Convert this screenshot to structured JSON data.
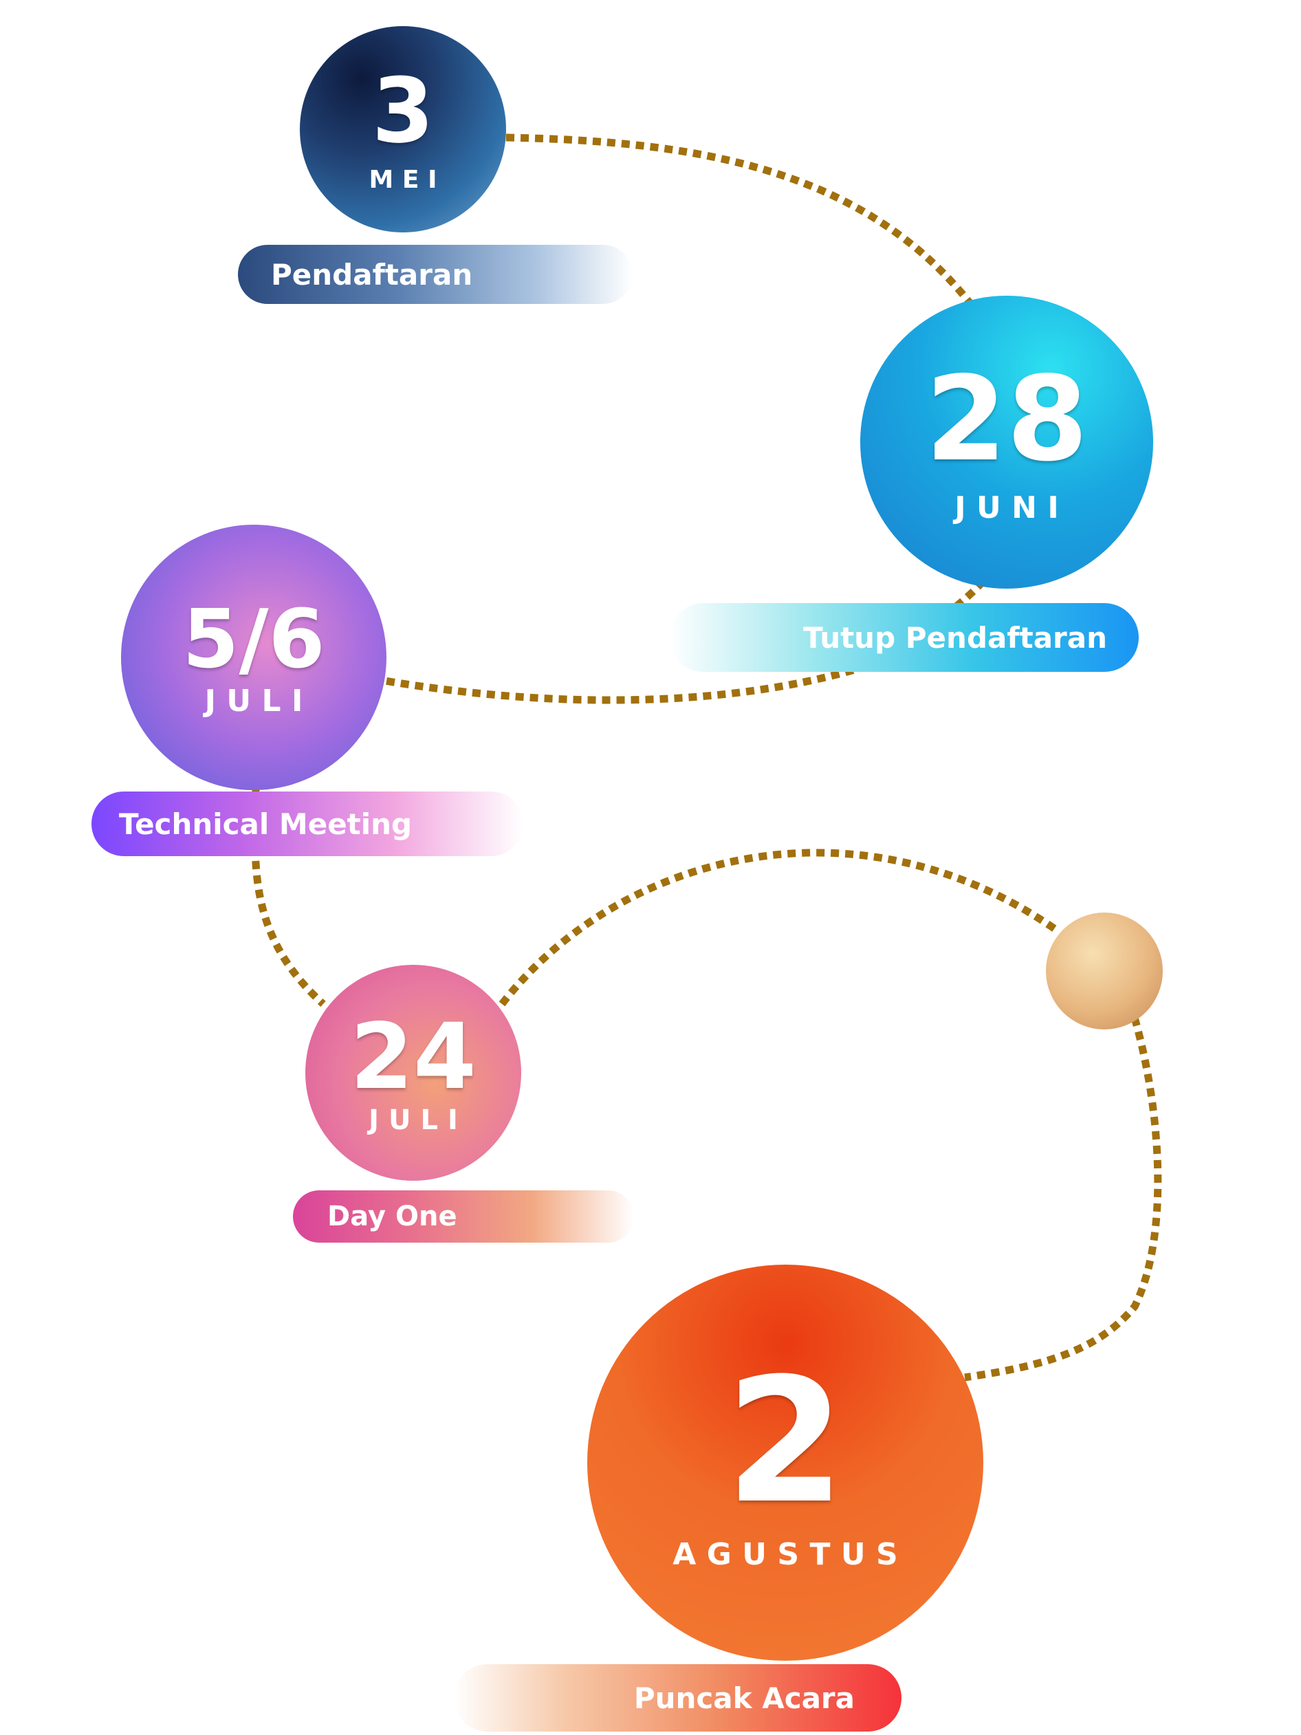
{
  "colors": {
    "path": "#a2700d"
  },
  "events": [
    {
      "day": "3",
      "month": "MEI",
      "label": "Pendaftaran",
      "color": "#1f3d6e"
    },
    {
      "day": "28",
      "month": "JUNI",
      "label": "Tutup Pendaftaran",
      "color": "#1aa7e0"
    },
    {
      "day": "5/6",
      "month": "JULI",
      "label": "Technical Meeting",
      "color": "#a46ce0"
    },
    {
      "day": "24",
      "month": "JULI",
      "label": "Day One",
      "color": "#e87aa0"
    },
    {
      "day": "2",
      "month": "AGUSTUS",
      "label": "Puncak Acara",
      "color": "#f06a28"
    }
  ]
}
